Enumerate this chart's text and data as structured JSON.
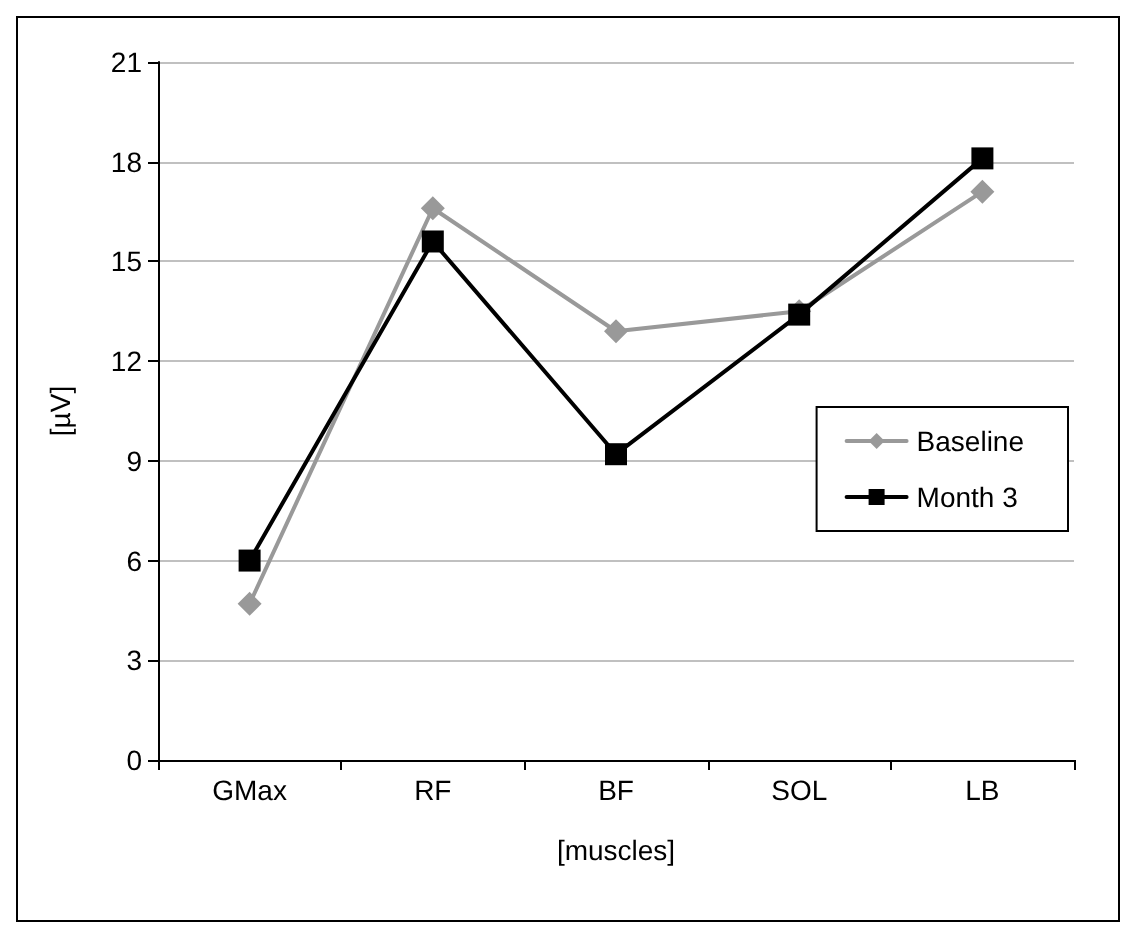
{
  "chart_data": {
    "type": "line",
    "xlabel": "[muscles]",
    "ylabel": "[µV]",
    "categories": [
      "GMax",
      "RF",
      "BF",
      "SOL",
      "LB"
    ],
    "series": [
      {
        "name": "Baseline",
        "color": "#999999",
        "marker": "diamond",
        "values": [
          4.7,
          16.6,
          12.9,
          13.5,
          17.1
        ]
      },
      {
        "name": "Month 3",
        "color": "#000000",
        "marker": "square",
        "values": [
          6.0,
          15.6,
          9.2,
          13.4,
          18.1
        ]
      }
    ],
    "ylim": [
      0,
      21
    ],
    "yticks": [
      0,
      3,
      6,
      9,
      12,
      15,
      18,
      21
    ],
    "grid": "y",
    "legend": "right",
    "line_style": "solid"
  }
}
